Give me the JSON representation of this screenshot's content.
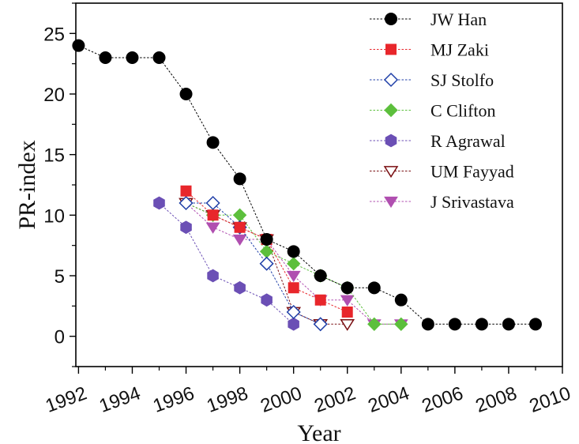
{
  "chart_data": {
    "type": "line",
    "xlabel": "Year",
    "ylabel": "PR-index",
    "xlim": [
      1991.9,
      2010
    ],
    "ylim": [
      -2.5,
      27.5
    ],
    "xticks": [
      1992,
      1994,
      1996,
      1998,
      2000,
      2002,
      2004,
      2006,
      2008,
      2010
    ],
    "xtick_labels": [
      "1992",
      "1994",
      "1996",
      "1998",
      "2000",
      "2002",
      "2004",
      "2006",
      "2008",
      "2010"
    ],
    "yticks": [
      0,
      5,
      10,
      15,
      20,
      25
    ],
    "ytick_labels": [
      "0",
      "5",
      "10",
      "15",
      "20",
      "25"
    ],
    "legend_position": "top-right",
    "series": [
      {
        "name": "JW Han",
        "color": "#000000",
        "marker": "circle",
        "filled": true,
        "x": [
          1992,
          1993,
          1994,
          1995,
          1996,
          1997,
          1998,
          1999,
          2000,
          2001,
          2002,
          2003,
          2004,
          2005,
          2006,
          2007,
          2008,
          2009
        ],
        "y": [
          24,
          23,
          23,
          23,
          20,
          16,
          13,
          8,
          7,
          5,
          4,
          4,
          3,
          1,
          1,
          1,
          1,
          1
        ]
      },
      {
        "name": "MJ Zaki",
        "color": "#e8262b",
        "marker": "square",
        "filled": true,
        "x": [
          1996,
          1997,
          1998,
          1999,
          2000,
          2001,
          2002
        ],
        "y": [
          12,
          10,
          9,
          8,
          4,
          3,
          2
        ]
      },
      {
        "name": "SJ Stolfo",
        "color": "#1f3fa8",
        "marker": "diamond",
        "filled": false,
        "x": [
          1996,
          1997,
          1998,
          1999,
          2000,
          2001
        ],
        "y": [
          11,
          11,
          9,
          6,
          2,
          1
        ]
      },
      {
        "name": "C Clifton",
        "color": "#5cbf3c",
        "marker": "diamond",
        "filled": true,
        "x": [
          1996,
          1997,
          1998,
          1999,
          2000,
          2001,
          2002,
          2003,
          2004
        ],
        "y": [
          11,
          10,
          10,
          7,
          6,
          5,
          4,
          1,
          1
        ]
      },
      {
        "name": "R Agrawal",
        "color": "#6b4fb5",
        "marker": "hexagon",
        "filled": true,
        "x": [
          1995,
          1996,
          1997,
          1998,
          1999,
          2000
        ],
        "y": [
          11,
          9,
          5,
          4,
          3,
          1
        ]
      },
      {
        "name": "UM Fayyad",
        "color": "#7a0f12",
        "marker": "triangle-down",
        "filled": false,
        "x": [
          1996,
          1997,
          1998,
          1999,
          2000,
          2001,
          2002
        ],
        "y": [
          11,
          10,
          9,
          8,
          2,
          1,
          1
        ]
      },
      {
        "name": "J Srivastava",
        "color": "#b04fb0",
        "marker": "triangle-down",
        "filled": true,
        "x": [
          1996,
          1997,
          1998,
          1999,
          2000,
          2001,
          2002,
          2003,
          2004
        ],
        "y": [
          11,
          9,
          8,
          8,
          5,
          3,
          3,
          1,
          1
        ]
      }
    ]
  }
}
